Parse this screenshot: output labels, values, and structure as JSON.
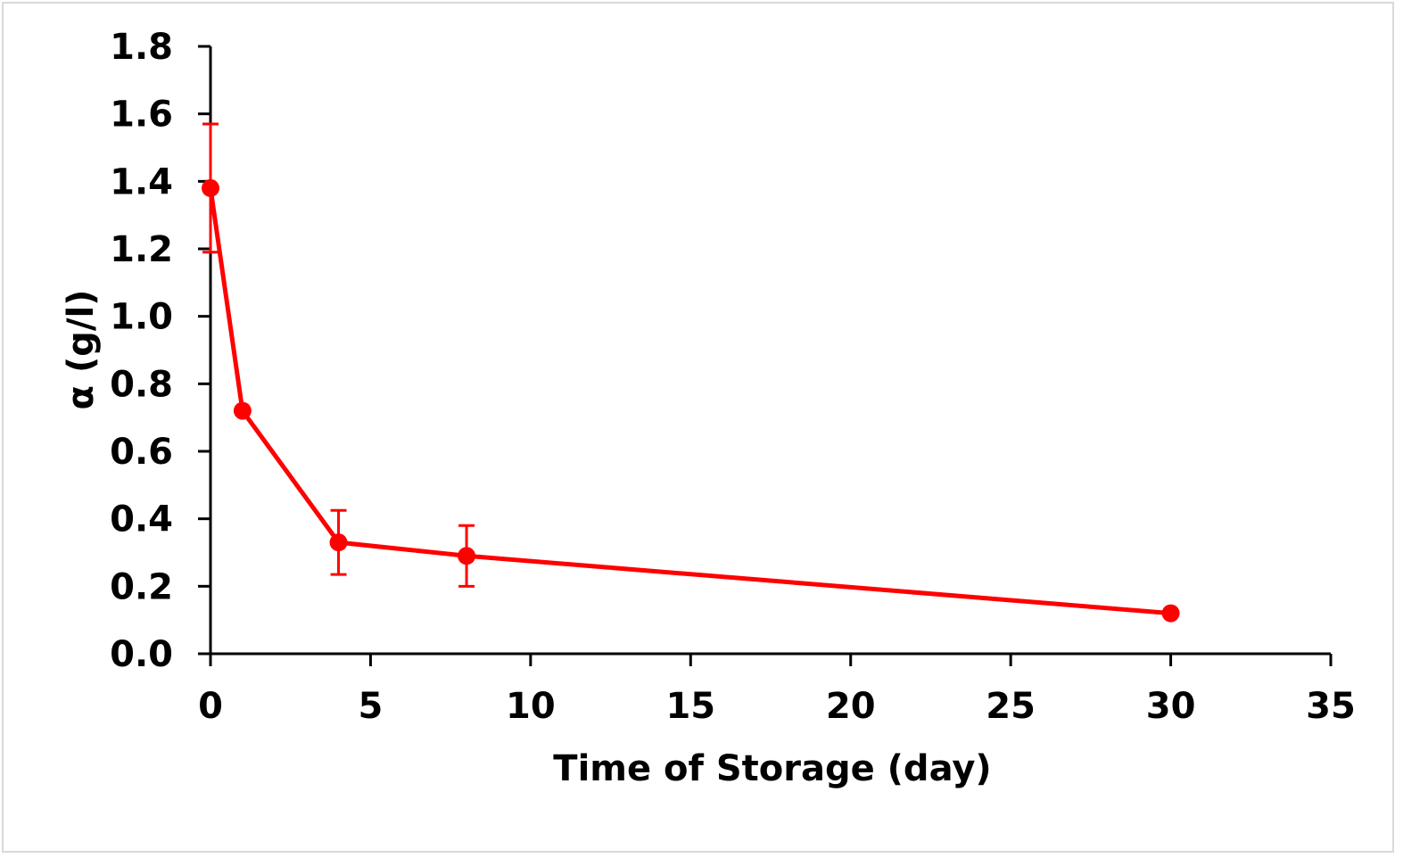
{
  "chart_data": {
    "type": "line",
    "title": "",
    "xlabel": "Time of Storage (day)",
    "ylabel": "α (g/l)",
    "xlim": [
      0,
      35
    ],
    "ylim": [
      0,
      1.8
    ],
    "x_ticks": [
      0,
      5,
      10,
      15,
      20,
      25,
      30,
      35
    ],
    "x_tick_labels": [
      "0",
      "5",
      "10",
      "15",
      "20",
      "25",
      "30",
      "35"
    ],
    "y_ticks": [
      0,
      0.2,
      0.4,
      0.6,
      0.8,
      1.0,
      1.2,
      1.4,
      1.6,
      1.8
    ],
    "y_tick_labels": [
      "0.0",
      "0.2",
      "0.4",
      "0.6",
      "0.8",
      "1.0",
      "1.2",
      "1.4",
      "1.6",
      "1.8"
    ],
    "grid": false,
    "legend": "none",
    "series": [
      {
        "color": "#ff0000",
        "x": [
          0,
          1,
          4,
          8,
          30
        ],
        "y": [
          1.38,
          0.72,
          0.33,
          0.29,
          0.12
        ],
        "error": [
          0.19,
          0.0,
          0.095,
          0.09,
          0.0
        ]
      }
    ]
  }
}
